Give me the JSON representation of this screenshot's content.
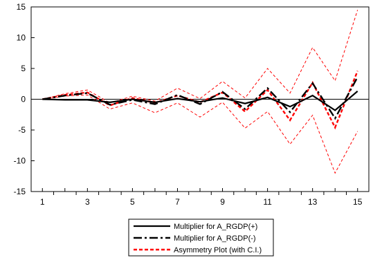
{
  "chart_data": {
    "type": "line",
    "title": "",
    "xlabel": "",
    "ylabel": "",
    "x": [
      1,
      2,
      3,
      4,
      5,
      6,
      7,
      8,
      9,
      10,
      11,
      12,
      13,
      14,
      15
    ],
    "xlim": [
      0.5,
      15.5
    ],
    "xticks": [
      1,
      3,
      5,
      7,
      9,
      11,
      13,
      15
    ],
    "ylim": [
      -15,
      15
    ],
    "yticks": [
      15,
      10,
      5,
      0,
      -5,
      -10,
      -15
    ],
    "zero_line": true,
    "grid": false,
    "legend_position": "bottom-center",
    "series": [
      {
        "name": "Multiplier for A_RGDP(+)",
        "style": "solid",
        "color": "#000000",
        "values": [
          0,
          -0.1,
          -0.1,
          -0.5,
          0.0,
          -0.5,
          0.1,
          -0.4,
          0.2,
          -0.7,
          0.3,
          -1.2,
          0.6,
          -1.8,
          1.3
        ]
      },
      {
        "name": "Multiplier for A_RGDP(-)",
        "style": "longdash",
        "color": "#000000",
        "values": [
          0,
          0.6,
          1.0,
          -0.9,
          -0.1,
          -0.8,
          0.7,
          -0.8,
          1.2,
          -1.6,
          1.8,
          -2.1,
          2.6,
          -3.1,
          3.6
        ]
      },
      {
        "name": "Asymmetry Plot (with C.I.)",
        "style": "dash",
        "color": "#ff0000",
        "values": [
          0,
          0.7,
          1.1,
          -1.0,
          0.2,
          -0.6,
          0.6,
          -0.5,
          1.1,
          -2.0,
          1.5,
          -3.4,
          2.7,
          -4.6,
          4.6
        ]
      },
      {
        "name": "",
        "style": "thin-dash",
        "color": "#ff0000",
        "values": [
          0,
          0.9,
          1.5,
          -0.6,
          0.5,
          -0.3,
          1.8,
          0.1,
          2.9,
          0.2,
          5.0,
          1.0,
          8.4,
          3.0,
          14.5
        ]
      },
      {
        "name": "",
        "style": "thin-dash",
        "color": "#ff0000",
        "values": [
          0,
          0.5,
          0.7,
          -1.6,
          -0.6,
          -2.2,
          -0.6,
          -2.9,
          -0.5,
          -4.7,
          -2.0,
          -7.3,
          -2.6,
          -12.0,
          -5.2
        ]
      }
    ],
    "legend": [
      {
        "label": "Multiplier for A_RGDP(+)",
        "style": "solid",
        "color": "#000000"
      },
      {
        "label": "Multiplier for A_RGDP(-)",
        "style": "longdash",
        "color": "#000000"
      },
      {
        "label": "Asymmetry Plot (with C.I.)",
        "style": "dash",
        "color": "#ff0000"
      }
    ]
  }
}
